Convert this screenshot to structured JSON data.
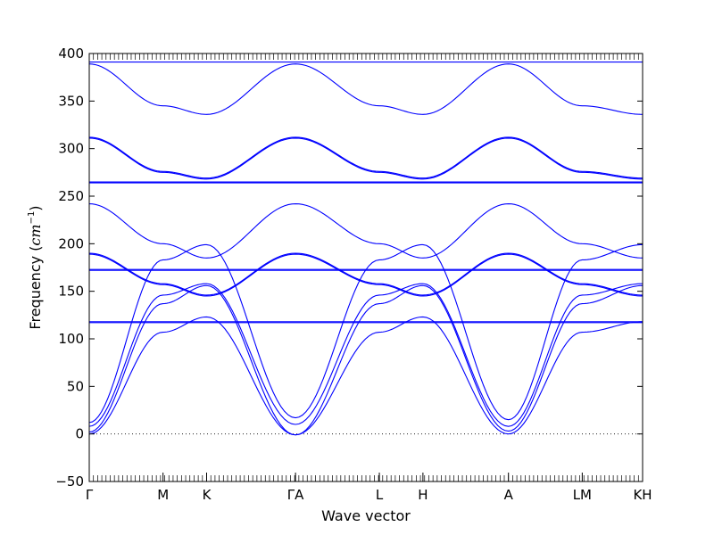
{
  "chart_data": {
    "type": "line",
    "title": "",
    "xlabel": "Wave vector",
    "ylabel": {
      "prefix": "Frequency (",
      "unit_base": "cm",
      "unit_exp": "−1",
      "suffix": ")"
    },
    "ylim": [
      -50,
      400
    ],
    "yticks": [
      "−50",
      "0",
      "50",
      "100",
      "150",
      "200",
      "250",
      "300",
      "350",
      "400"
    ],
    "ytick_values": [
      -50,
      0,
      50,
      100,
      150,
      200,
      250,
      300,
      350,
      400
    ],
    "xlim": [
      0,
      6.6
    ],
    "high_symmetry_points": [
      {
        "label": "Γ",
        "x": 0
      },
      {
        "label": "M",
        "x": 0.88
      },
      {
        "label": "K",
        "x": 1.4
      },
      {
        "label": "ΓA",
        "x": 2.46
      },
      {
        "label": "L",
        "x": 3.46
      },
      {
        "label": "H",
        "x": 3.98
      },
      {
        "label": "A",
        "x": 5.0
      },
      {
        "label": "LM",
        "x": 5.88
      },
      {
        "label": "KH",
        "x": 6.6
      }
    ],
    "zero_line": {
      "y": 0,
      "style": "dotted"
    },
    "line_color": "#0000ff",
    "series": [
      {
        "x": [
          0,
          0.88,
          1.4,
          2.46,
          3.46,
          3.98,
          5.0,
          5.88,
          6.6
        ],
        "values": [
          0,
          107,
          123,
          -1,
          107,
          123,
          0,
          107,
          118
        ]
      },
      {
        "x": [
          0,
          0.88,
          1.4,
          2.46,
          3.46,
          3.98,
          5.0,
          5.88,
          6.6
        ],
        "values": [
          2,
          137,
          156,
          -1,
          137,
          156,
          3,
          137,
          156
        ]
      },
      {
        "x": [
          0,
          0.88,
          1.4,
          2.46,
          3.46,
          3.98,
          5.0,
          5.88,
          6.6
        ],
        "values": [
          8,
          146,
          158,
          10,
          146,
          158,
          8,
          146,
          158
        ]
      },
      {
        "x": [
          0,
          0.88,
          1.4,
          2.46,
          3.46,
          3.98,
          5.0,
          5.88,
          6.6
        ],
        "values": [
          12,
          183,
          199,
          17,
          183,
          199,
          15,
          183,
          199
        ]
      },
      {
        "x": [
          0,
          0.88,
          1.4,
          2.46,
          3.46,
          3.98,
          5.0,
          5.88,
          6.6
        ],
        "values": [
          117,
          117,
          117,
          117,
          117,
          117,
          117,
          117,
          117
        ]
      },
      {
        "x": [
          0,
          0.88,
          1.4,
          2.46,
          3.46,
          3.98,
          5.0,
          5.88,
          6.6
        ],
        "values": [
          118,
          118,
          118,
          118,
          118,
          118,
          118,
          118,
          118
        ]
      },
      {
        "x": [
          0,
          0.88,
          1.4,
          2.46,
          3.46,
          3.98,
          5.0,
          5.88,
          6.6
        ],
        "values": [
          190,
          158,
          146,
          190,
          158,
          146,
          190,
          158,
          146
        ]
      },
      {
        "x": [
          0,
          0.88,
          1.4,
          2.46,
          3.46,
          3.98,
          5.0,
          5.88,
          6.6
        ],
        "values": [
          189,
          157,
          145,
          189,
          157,
          145,
          189,
          157,
          145
        ]
      },
      {
        "x": [
          0,
          0.88,
          1.4,
          2.46,
          3.46,
          3.98,
          5.0,
          5.88,
          6.6
        ],
        "values": [
          172,
          172,
          172,
          172,
          172,
          172,
          172,
          172,
          172
        ]
      },
      {
        "x": [
          0,
          0.88,
          1.4,
          2.46,
          3.46,
          3.98,
          5.0,
          5.88,
          6.6
        ],
        "values": [
          173,
          173,
          173,
          173,
          173,
          173,
          173,
          173,
          173
        ]
      },
      {
        "x": [
          0,
          0.88,
          1.4,
          2.46,
          3.46,
          3.98,
          5.0,
          5.88,
          6.6
        ],
        "values": [
          242,
          200,
          185,
          242,
          200,
          185,
          242,
          200,
          185
        ]
      },
      {
        "x": [
          0,
          0.88,
          1.4,
          2.46,
          3.46,
          3.98,
          5.0,
          5.88,
          6.6
        ],
        "values": [
          264,
          264,
          264,
          264,
          264,
          264,
          264,
          264,
          264
        ]
      },
      {
        "x": [
          0,
          0.88,
          1.4,
          2.46,
          3.46,
          3.98,
          5.0,
          5.88,
          6.6
        ],
        "values": [
          265,
          265,
          265,
          265,
          265,
          265,
          265,
          265,
          265
        ]
      },
      {
        "x": [
          0,
          0.88,
          1.4,
          2.46,
          3.46,
          3.98,
          5.0,
          5.88,
          6.6
        ],
        "values": [
          312,
          276,
          269,
          312,
          276,
          269,
          312,
          276,
          269
        ]
      },
      {
        "x": [
          0,
          0.88,
          1.4,
          2.46,
          3.46,
          3.98,
          5.0,
          5.88,
          6.6
        ],
        "values": [
          311,
          275,
          268,
          311,
          275,
          268,
          311,
          275,
          268
        ]
      },
      {
        "x": [
          0,
          0.88,
          1.4,
          2.46,
          3.46,
          3.98,
          5.0,
          5.88,
          6.6
        ],
        "values": [
          389,
          345,
          336,
          389,
          345,
          336,
          389,
          345,
          336
        ]
      },
      {
        "x": [
          0,
          0.88,
          1.4,
          2.46,
          3.46,
          3.98,
          5.0,
          5.88,
          6.6
        ],
        "values": [
          391,
          391,
          391,
          391,
          391,
          391,
          391,
          391,
          391
        ]
      }
    ]
  }
}
